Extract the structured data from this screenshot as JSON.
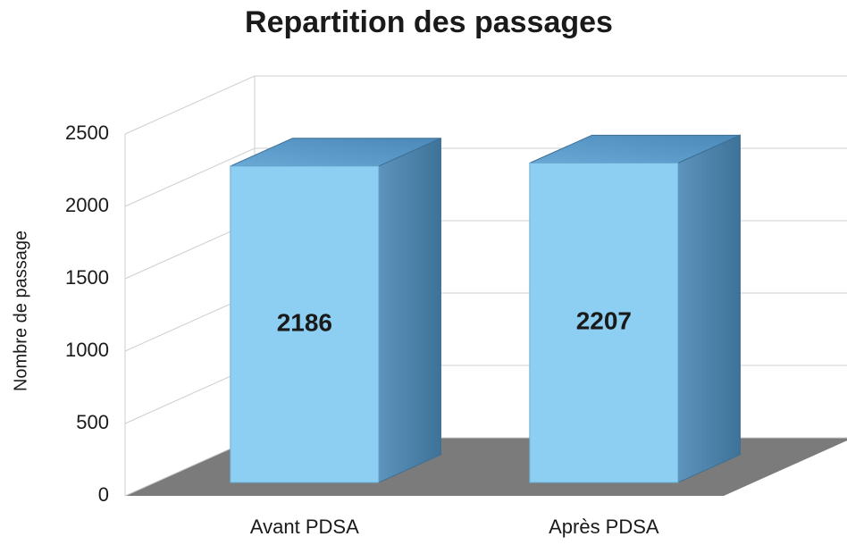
{
  "chart_data": {
    "type": "bar3d",
    "title": "Repartition des passages",
    "y_label": "Nombre de passage",
    "categories": [
      "Avant PDSA",
      "Après PDSA"
    ],
    "values": [
      2186,
      2207
    ],
    "color": "#8dcff2",
    "ylim": [
      0,
      2500
    ],
    "yticks": [
      0,
      500,
      1000,
      1500,
      2000,
      2500
    ],
    "grid": true
  }
}
